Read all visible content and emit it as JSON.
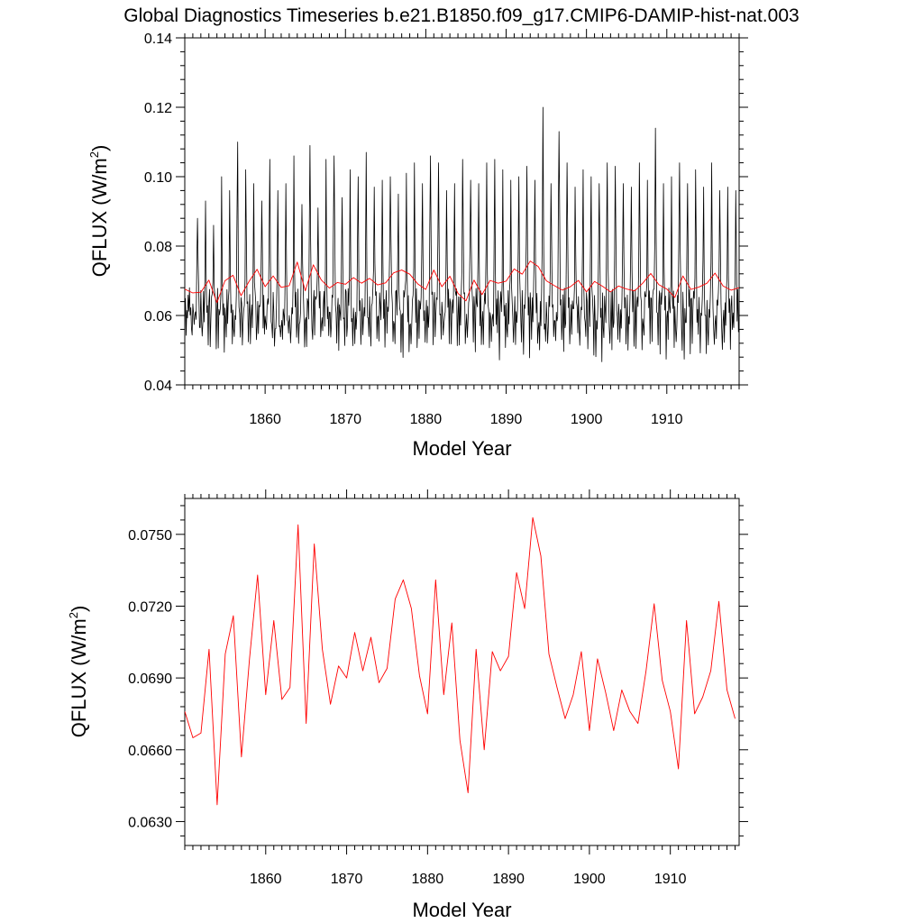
{
  "title": "Global Diagnostics Timeseries b.e21.B1850.f09_g17.CMIP6-DAMIP-hist-nat.003",
  "chart_data": [
    {
      "type": "line",
      "xlabel": "Model Year",
      "ylabel": "QFLUX (W/m",
      "ylabel_sup": "2",
      "ylabel_close": ")",
      "xlim": [
        1850,
        1919
      ],
      "ylim": [
        0.04,
        0.14
      ],
      "x_ticks": [
        1860,
        1870,
        1880,
        1890,
        1900,
        1910
      ],
      "x_tick_labels": [
        "1860",
        "1870",
        "1880",
        "1890",
        "1900",
        "1910"
      ],
      "y_ticks": [
        0.04,
        0.06,
        0.08,
        0.1,
        0.12,
        0.14
      ],
      "y_tick_labels": [
        "0.04",
        "0.06",
        "0.08",
        "0.10",
        "0.12",
        "0.14"
      ],
      "grid": false,
      "series": [
        {
          "color": "#000000",
          "monthly_annual_peaks": [
            0.068,
            0.088,
            0.093,
            0.086,
            0.1,
            0.096,
            0.11,
            0.102,
            0.098,
            0.093,
            0.105,
            0.096,
            0.098,
            0.106,
            0.092,
            0.109,
            0.091,
            0.105,
            0.106,
            0.094,
            0.102,
            0.1,
            0.107,
            0.097,
            0.099,
            0.1,
            0.095,
            0.101,
            0.104,
            0.098,
            0.106,
            0.104,
            0.096,
            0.098,
            0.105,
            0.099,
            0.098,
            0.104,
            0.105,
            0.102,
            0.099,
            0.1,
            0.103,
            0.099,
            0.12,
            0.098,
            0.113,
            0.104,
            0.097,
            0.102,
            0.1,
            0.098,
            0.104,
            0.103,
            0.098,
            0.097,
            0.104,
            0.099,
            0.114,
            0.098,
            0.1,
            0.104,
            0.098,
            0.102,
            0.097,
            0.104,
            0.096,
            0.097,
            0.096
          ],
          "monthly_annual_lows": [
            0.052,
            0.054,
            0.051,
            0.05,
            0.047,
            0.05,
            0.051,
            0.049,
            0.05,
            0.051,
            0.052,
            0.05,
            0.051,
            0.05,
            0.049,
            0.05,
            0.051,
            0.052,
            0.05,
            0.049,
            0.051,
            0.05,
            0.052,
            0.051,
            0.05,
            0.052,
            0.049,
            0.047,
            0.05,
            0.051,
            0.049,
            0.05,
            0.051,
            0.049,
            0.05,
            0.051,
            0.048,
            0.05,
            0.051,
            0.047,
            0.05,
            0.051,
            0.046,
            0.05,
            0.049,
            0.051,
            0.05,
            0.049,
            0.051,
            0.05,
            0.047,
            0.046,
            0.051,
            0.05,
            0.049,
            0.048,
            0.05,
            0.051,
            0.049,
            0.047,
            0.05,
            0.049,
            0.046,
            0.051,
            0.049,
            0.051,
            0.05,
            0.049,
            0.052
          ]
        },
        {
          "color": "#ff0000",
          "x": [
            1850,
            1851,
            1852,
            1853,
            1854,
            1855,
            1856,
            1857,
            1858,
            1859,
            1860,
            1861,
            1862,
            1863,
            1864,
            1865,
            1866,
            1867,
            1868,
            1869,
            1870,
            1871,
            1872,
            1873,
            1874,
            1875,
            1876,
            1877,
            1878,
            1879,
            1880,
            1881,
            1882,
            1883,
            1884,
            1885,
            1886,
            1887,
            1888,
            1889,
            1890,
            1891,
            1892,
            1893,
            1894,
            1895,
            1896,
            1897,
            1898,
            1899,
            1900,
            1901,
            1902,
            1903,
            1904,
            1905,
            1906,
            1907,
            1908,
            1909,
            1910,
            1911,
            1912,
            1913,
            1914,
            1915,
            1916,
            1917,
            1918,
            1919
          ],
          "y": [
            0.0676,
            0.0665,
            0.0667,
            0.0702,
            0.0637,
            0.07,
            0.0716,
            0.0657,
            0.0698,
            0.0733,
            0.0683,
            0.0714,
            0.0681,
            0.0686,
            0.0754,
            0.0671,
            0.0746,
            0.0702,
            0.0679,
            0.0695,
            0.069,
            0.0709,
            0.0693,
            0.0707,
            0.0688,
            0.0694,
            0.0723,
            0.0731,
            0.0719,
            0.0691,
            0.0675,
            0.0731,
            0.0683,
            0.0713,
            0.0664,
            0.0642,
            0.0702,
            0.066,
            0.0701,
            0.0693,
            0.0699,
            0.0734,
            0.0719,
            0.0757,
            0.0741,
            0.07,
            0.0686,
            0.0673,
            0.0683,
            0.0701,
            0.0668,
            0.0698,
            0.0684,
            0.0668,
            0.0685,
            0.0676,
            0.0671,
            0.0693,
            0.0721,
            0.0689,
            0.0676,
            0.0652,
            0.0714,
            0.0675,
            0.0682,
            0.0693,
            0.0722,
            0.0685,
            0.0673,
            0.068
          ]
        }
      ]
    },
    {
      "type": "line",
      "xlabel": "Model Year",
      "ylabel": "QFLUX (W/m",
      "ylabel_sup": "2",
      "ylabel_close": ")",
      "xlim": [
        1850,
        1918.5
      ],
      "ylim": [
        0.062,
        0.0765
      ],
      "x_ticks": [
        1860,
        1870,
        1880,
        1890,
        1900,
        1910
      ],
      "x_tick_labels": [
        "1860",
        "1870",
        "1880",
        "1890",
        "1900",
        "1910"
      ],
      "y_ticks": [
        0.063,
        0.066,
        0.069,
        0.072,
        0.075
      ],
      "y_tick_labels": [
        "0.0630",
        "0.0660",
        "0.0690",
        "0.0720",
        "0.0750"
      ],
      "grid": false,
      "series": [
        {
          "color": "#ff0000",
          "x": [
            1850,
            1851,
            1852,
            1853,
            1854,
            1855,
            1856,
            1857,
            1858,
            1859,
            1860,
            1861,
            1862,
            1863,
            1864,
            1865,
            1866,
            1867,
            1868,
            1869,
            1870,
            1871,
            1872,
            1873,
            1874,
            1875,
            1876,
            1877,
            1878,
            1879,
            1880,
            1881,
            1882,
            1883,
            1884,
            1885,
            1886,
            1887,
            1888,
            1889,
            1890,
            1891,
            1892,
            1893,
            1894,
            1895,
            1896,
            1897,
            1898,
            1899,
            1900,
            1901,
            1902,
            1903,
            1904,
            1905,
            1906,
            1907,
            1908,
            1909,
            1910,
            1911,
            1912,
            1913,
            1914,
            1915,
            1916,
            1917,
            1918
          ],
          "y": [
            0.0676,
            0.0665,
            0.0667,
            0.0702,
            0.0637,
            0.07,
            0.0716,
            0.0657,
            0.0698,
            0.0733,
            0.0683,
            0.0714,
            0.0681,
            0.0686,
            0.0754,
            0.0671,
            0.0746,
            0.0702,
            0.0679,
            0.0695,
            0.069,
            0.0709,
            0.0693,
            0.0707,
            0.0688,
            0.0694,
            0.0723,
            0.0731,
            0.0719,
            0.0691,
            0.0675,
            0.0731,
            0.0683,
            0.0713,
            0.0664,
            0.0642,
            0.0702,
            0.066,
            0.0701,
            0.0693,
            0.0699,
            0.0734,
            0.0719,
            0.0757,
            0.0741,
            0.07,
            0.0686,
            0.0673,
            0.0683,
            0.0701,
            0.0668,
            0.0698,
            0.0684,
            0.0668,
            0.0685,
            0.0676,
            0.0671,
            0.0693,
            0.0721,
            0.0689,
            0.0676,
            0.0652,
            0.0714,
            0.0675,
            0.0682,
            0.0693,
            0.0722,
            0.0685,
            0.0673
          ]
        }
      ]
    }
  ]
}
